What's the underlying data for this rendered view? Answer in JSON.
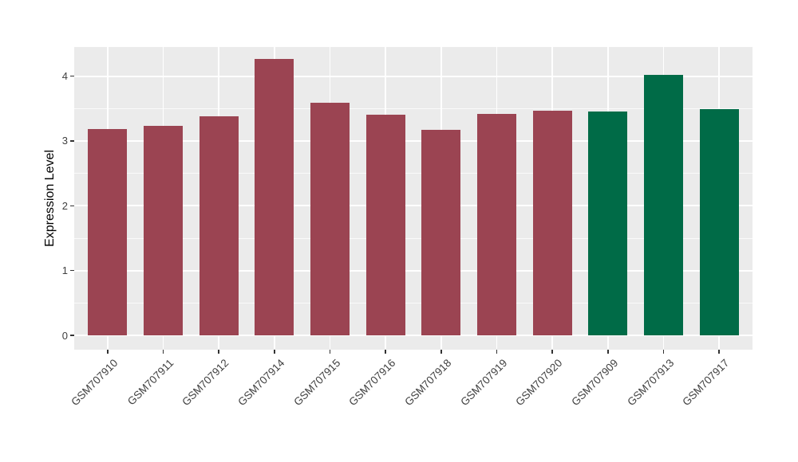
{
  "chart_data": {
    "type": "bar",
    "title": "",
    "ylabel": "Expression Level",
    "xlabel": "",
    "categories": [
      "GSM707910",
      "GSM707911",
      "GSM707912",
      "GSM707914",
      "GSM707915",
      "GSM707916",
      "GSM707918",
      "GSM707919",
      "GSM707920",
      "GSM707909",
      "GSM707913",
      "GSM707917"
    ],
    "values": [
      3.18,
      3.23,
      3.38,
      4.27,
      3.59,
      3.4,
      3.17,
      3.42,
      3.47,
      3.46,
      4.02,
      3.49
    ],
    "bar_colors": [
      "#9B4452",
      "#9B4452",
      "#9B4452",
      "#9B4452",
      "#9B4452",
      "#9B4452",
      "#9B4452",
      "#9B4452",
      "#9B4452",
      "#006B47",
      "#006B47",
      "#006B47"
    ],
    "yticks": [
      "0",
      "1",
      "2",
      "3",
      "4"
    ],
    "ytick_values": [
      0,
      1,
      2,
      3,
      4
    ],
    "ylim": [
      0,
      4.45
    ],
    "grid": true,
    "legend": false,
    "colors": {
      "panel_background": "#EBEBEB",
      "gridline": "#FFFFFF",
      "axis_text": "#404040",
      "axis_title": "#000000",
      "tick_mark": "#333333",
      "bar_group_red": "#9B4452",
      "bar_group_green": "#006B47"
    }
  }
}
